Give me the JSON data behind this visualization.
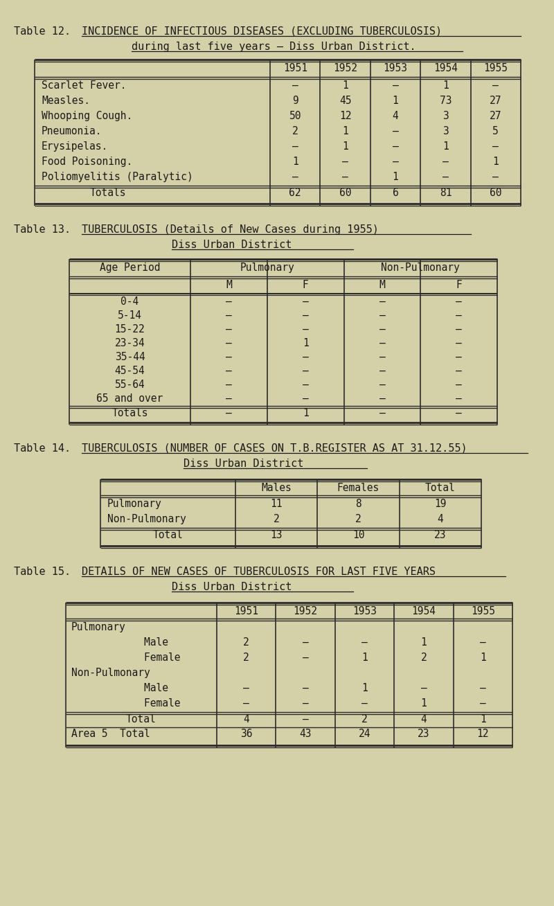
{
  "bg_color": "#d4d0a8",
  "text_color": "#1a1a1a",
  "table12": {
    "title_label": "Table 12.",
    "title_text": "INCIDENCE OF INFECTIOUS DISEASES (EXCLUDING TUBERCULOSIS)",
    "subtitle": "during last five years – Diss Urban District.",
    "years": [
      "1951",
      "1952",
      "1953",
      "1954",
      "1955"
    ],
    "rows": [
      [
        "Scarlet Fever.",
        "–",
        "1",
        "–",
        "1",
        "–"
      ],
      [
        "Measles.",
        "9",
        "45",
        "1",
        "73",
        "27"
      ],
      [
        "Whooping Cough.",
        "50",
        "12",
        "4",
        "3",
        "27"
      ],
      [
        "Pneumonia.",
        "2",
        "1",
        "–",
        "3",
        "5"
      ],
      [
        "Erysipelas.",
        "–",
        "1",
        "–",
        "1",
        "–"
      ],
      [
        "Food Poisoning.",
        "1",
        "–",
        "–",
        "–",
        "1"
      ],
      [
        "Poliomyelitis (Paralytic)",
        "–",
        "–",
        "1",
        "–",
        "–"
      ]
    ],
    "totals": [
      "62",
      "60",
      "6",
      "81",
      "60"
    ]
  },
  "table13": {
    "title_label": "Table 13.",
    "title_text": "TUBERCULOSIS (Details of New Cases during 1955)",
    "subtitle": "Diss Urban District",
    "age_periods": [
      "0-4",
      "5-14",
      "15-22",
      "23-34",
      "35-44",
      "45-54",
      "55-64",
      "65 and over"
    ],
    "rows": [
      [
        "–",
        "–",
        "–",
        "–"
      ],
      [
        "–",
        "–",
        "–",
        "–"
      ],
      [
        "–",
        "–",
        "–",
        "–"
      ],
      [
        "–",
        "1",
        "–",
        "–"
      ],
      [
        "–",
        "–",
        "–",
        "–"
      ],
      [
        "–",
        "–",
        "–",
        "–"
      ],
      [
        "–",
        "–",
        "–",
        "–"
      ],
      [
        "–",
        "–",
        "–",
        "–"
      ]
    ],
    "totals": [
      "–",
      "1",
      "–",
      "–"
    ]
  },
  "table14": {
    "title_label": "Table 14.",
    "title_text": "TUBERCULOSIS (NUMBER OF CASES ON T.B.REGISTER AS AT 31.12.55)",
    "subtitle": "Diss Urban District",
    "col_headers": [
      "Males",
      "Females",
      "Total"
    ],
    "rows": [
      [
        "Pulmonary",
        "11",
        "8",
        "19"
      ],
      [
        "Non-Pulmonary",
        "2",
        "2",
        "4"
      ]
    ],
    "totals": [
      "Total",
      "13",
      "10",
      "23"
    ]
  },
  "table15": {
    "title_label": "Table 15.",
    "title_text": "DETAILS OF NEW CASES OF TUBERCULOSIS FOR LAST FIVE YEARS",
    "subtitle": "Diss Urban District",
    "years": [
      "1951",
      "1952",
      "1953",
      "1954",
      "1955"
    ],
    "rows": [
      [
        "Pulmonary",
        "",
        "",
        "",
        "",
        ""
      ],
      [
        "            Male",
        "2",
        "–",
        "–",
        "1",
        "–"
      ],
      [
        "            Female",
        "2",
        "–",
        "1",
        "2",
        "1"
      ],
      [
        "Non-Pulmonary",
        "",
        "",
        "",
        "",
        ""
      ],
      [
        "            Male",
        "–",
        "–",
        "1",
        "–",
        "–"
      ],
      [
        "            Female",
        "–",
        "–",
        "–",
        "1",
        "–"
      ]
    ],
    "totals_label": "Total",
    "totals": [
      "4",
      "–",
      "2",
      "4",
      "1"
    ],
    "area5_label": "Area 5  Total",
    "area5": [
      "36",
      "43",
      "24",
      "23",
      "12"
    ]
  }
}
